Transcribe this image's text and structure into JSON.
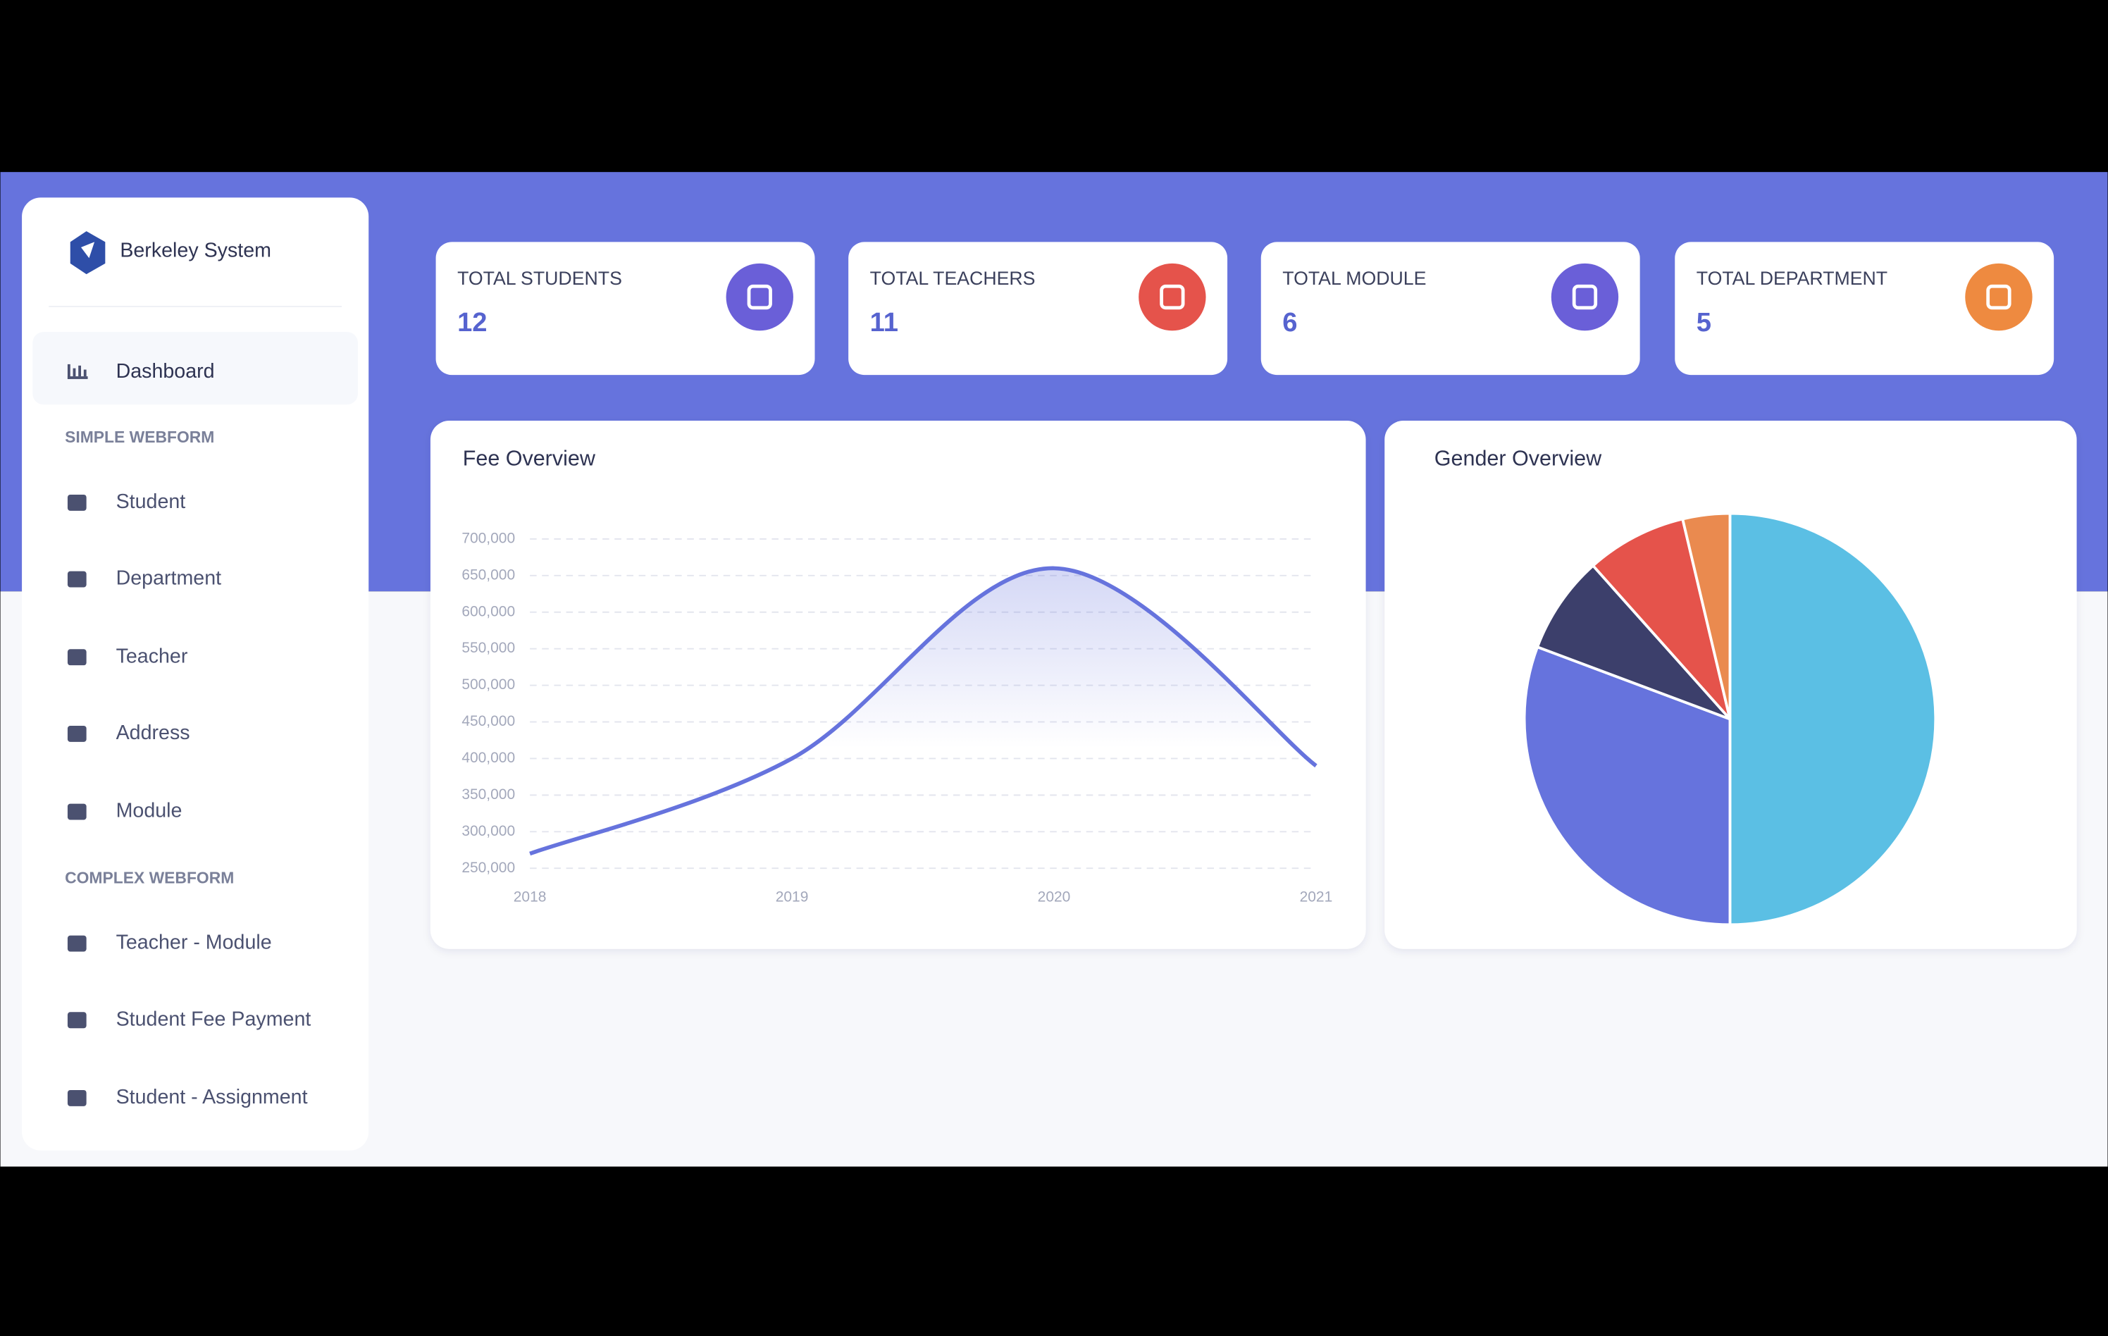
{
  "sidebar": {
    "brand": "Berkeley System",
    "dashboard": "Dashboard",
    "sections": [
      {
        "title": "SIMPLE WEBFORM",
        "items": [
          "Student",
          "Department",
          "Teacher",
          "Address",
          "Module"
        ]
      },
      {
        "title": "COMPLEX WEBFORM",
        "items": [
          "Teacher - Module",
          "Student Fee Payment",
          "Student - Assignment"
        ]
      }
    ]
  },
  "cards": [
    {
      "title": "TOTAL STUDENTS",
      "value": 12
    },
    {
      "title": "TOTAL TEACHERS",
      "value": 11
    },
    {
      "title": "TOTAL MODULE",
      "value": 6
    },
    {
      "title": "TOTAL DEPARTMENT",
      "value": 5
    }
  ],
  "chart_data": [
    {
      "type": "line",
      "title": "Fee Overview",
      "x": [
        2018,
        2019,
        2020,
        2021
      ],
      "values": [
        270000,
        400000,
        660000,
        390000
      ],
      "color": "#6673dd",
      "xlim": [
        2018,
        2021
      ],
      "xticks": [
        2018,
        2019,
        2020,
        2021
      ],
      "ylim": [
        250000,
        700000
      ],
      "yticks": [
        {
          "value": 250000,
          "label": "250,000"
        },
        {
          "value": 300000,
          "label": "300,000"
        },
        {
          "value": 350000,
          "label": "350,000"
        },
        {
          "value": 400000,
          "label": "400,000"
        },
        {
          "value": 450000,
          "label": "450,000"
        },
        {
          "value": 500000,
          "label": "500,000"
        },
        {
          "value": 550000,
          "label": "550,000"
        },
        {
          "value": 600000,
          "label": "600,000"
        },
        {
          "value": 650000,
          "label": "650,000"
        },
        {
          "value": 700000,
          "label": "700,000"
        }
      ],
      "grid": true
    },
    {
      "type": "pie",
      "title": "Gender Overview",
      "categories": [
        null,
        null,
        null,
        null,
        null
      ],
      "values": [
        50,
        30.7,
        7.7,
        7.9,
        3.7
      ],
      "colors": [
        "#5bbfe4",
        "#6673dd",
        "#3c3f6b",
        "#e5534b",
        "#ea8a4f"
      ]
    }
  ]
}
